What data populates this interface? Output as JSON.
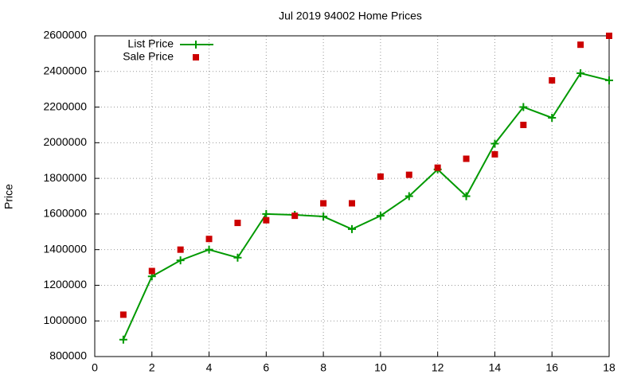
{
  "chart_data": {
    "type": "line",
    "title": "Jul 2019 94002 Home Prices",
    "ylabel": "Price",
    "x": [
      1,
      2,
      3,
      4,
      5,
      6,
      7,
      8,
      9,
      10,
      11,
      12,
      13,
      14,
      15,
      16,
      17,
      18
    ],
    "series": [
      {
        "name": "List Price",
        "color": "#009900",
        "mode": "linespoints",
        "marker": "plus",
        "values": [
          895000,
          1250000,
          1340000,
          1400000,
          1355000,
          1600000,
          1595000,
          1586000,
          1515000,
          1590000,
          1700000,
          1850000,
          1700000,
          1995000,
          2200000,
          2140000,
          2390000,
          2350000
        ]
      },
      {
        "name": "Sale Price",
        "color": "#cc0000",
        "mode": "points",
        "marker": "square",
        "values": [
          1035000,
          1280000,
          1400000,
          1460000,
          1550000,
          1565000,
          1590000,
          1660000,
          1660000,
          1810000,
          1820000,
          1860000,
          1910000,
          1935000,
          2100000,
          2350000,
          2550000,
          2600000
        ]
      }
    ],
    "xlim": [
      0,
      18
    ],
    "xticks": [
      0,
      2,
      4,
      6,
      8,
      10,
      12,
      14,
      16,
      18
    ],
    "ylim": [
      800000,
      2600000
    ],
    "yticks": [
      800000,
      1000000,
      1200000,
      1400000,
      1600000,
      1800000,
      2000000,
      2200000,
      2400000,
      2600000
    ],
    "grid": true,
    "legend": "top-left"
  }
}
